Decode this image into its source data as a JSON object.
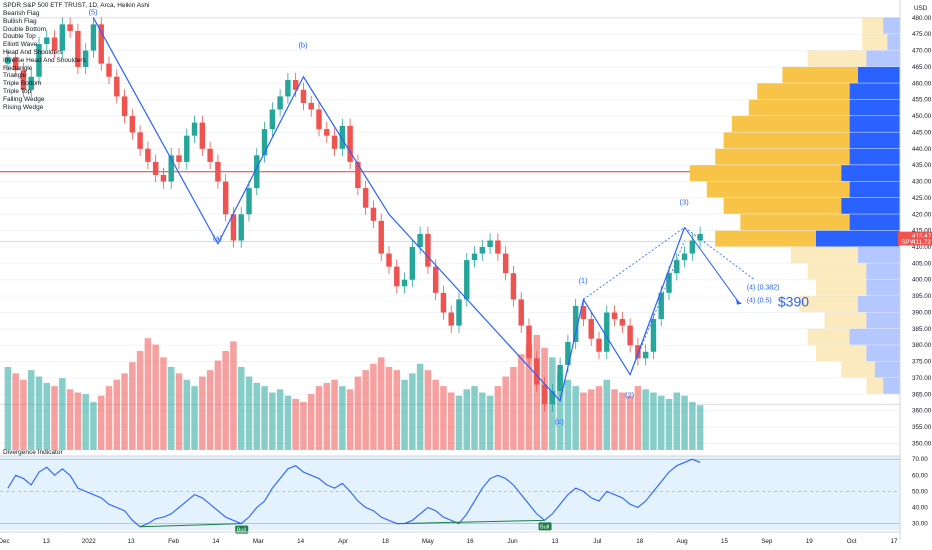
{
  "header": {
    "symbol_line": "SPDR S&P 500 ETF TRUST, 1D, Arca, Heikin Ashi"
  },
  "patterns": [
    "Bearish Flag",
    "Bullish Flag",
    "Double Bottom",
    "Double Top",
    "Elliott Wave",
    "Head And Shoulders",
    "Inverse Head And Shoulders",
    "Rectangle",
    "Triangle",
    "Triple Bottom",
    "Triple Top",
    "Falling Wedge",
    "Rising Wedge"
  ],
  "indicator": {
    "title": "Divergence Indicator"
  },
  "colors": {
    "up": "#26a69a",
    "down": "#ef5350",
    "wave": "#2962ff",
    "vp_up": "#2962ff",
    "vp_down": "#f7c448",
    "resistance": "#e53935",
    "osc_bg": "#e3f2fd",
    "bull_label": "#1b7d45"
  },
  "price_axis": {
    "unit": "USD",
    "ticks": [
      350,
      355,
      360,
      365,
      370,
      375,
      380,
      385,
      390,
      395,
      400,
      405,
      410,
      415,
      420,
      425,
      430,
      435,
      440,
      445,
      450,
      455,
      460,
      465,
      470,
      475,
      480
    ],
    "labels": [
      "350.00",
      "355.00",
      "360.00",
      "365.00",
      "370.00",
      "375.00",
      "380.00",
      "385.00",
      "390.00",
      "395.00",
      "400.00",
      "405.00",
      "410.00",
      "415.00",
      "420.00",
      "425.00",
      "430.00",
      "435.00",
      "440.00",
      "445.00",
      "450.00",
      "455.00",
      "460.00",
      "465.00",
      "470.00",
      "475.00",
      "480.00"
    ],
    "last_price": {
      "value": 413.47,
      "label": "413.47"
    },
    "symbol_tag": {
      "symbol": "SPY",
      "value": 411.72,
      "label": "411.72"
    }
  },
  "osc_axis": {
    "ticks": [
      30,
      40,
      50,
      60,
      70
    ],
    "labels": [
      "30.00",
      "40.00",
      "50.00",
      "60.00",
      "70.00"
    ]
  },
  "time_axis": {
    "labels": [
      "Dec",
      "13",
      "2022",
      "13",
      "Feb",
      "14",
      "Mar",
      "14",
      "Apr",
      "18",
      "May",
      "16",
      "Jun",
      "13",
      "Jul",
      "18",
      "Aug",
      "15",
      "Sep",
      "19",
      "Oct",
      "17"
    ]
  },
  "chart_data": {
    "type": "candlestick",
    "price_range": [
      348,
      483
    ],
    "osc_range": [
      26,
      72
    ],
    "resistance_level": 433,
    "series_close": [
      468,
      464,
      458,
      462,
      472,
      474,
      470,
      478,
      476,
      465,
      470,
      478,
      466,
      462,
      456,
      450,
      445,
      440,
      436,
      432,
      430,
      438,
      436,
      444,
      448,
      440,
      436,
      430,
      420,
      412,
      420,
      428,
      438,
      446,
      452,
      456,
      461,
      458,
      454,
      452,
      446,
      444,
      440,
      447,
      436,
      428,
      422,
      418,
      408,
      404,
      398,
      400,
      410,
      414,
      404,
      396,
      390,
      386,
      394,
      406,
      408,
      410,
      412,
      408,
      402,
      394,
      386,
      376,
      368,
      362,
      366,
      374,
      381,
      392,
      388,
      382,
      378,
      390,
      388,
      386,
      380,
      376,
      378,
      388,
      396,
      402,
      406,
      408,
      412,
      414
    ],
    "volume": [
      52,
      48,
      44,
      50,
      46,
      42,
      40,
      45,
      38,
      36,
      35,
      30,
      34,
      40,
      44,
      48,
      55,
      62,
      70,
      66,
      58,
      52,
      48,
      44,
      40,
      46,
      50,
      56,
      62,
      68,
      52,
      46,
      42,
      40,
      36,
      38,
      34,
      32,
      30,
      35,
      40,
      42,
      44,
      40,
      38,
      46,
      50,
      54,
      58,
      52,
      50,
      44,
      48,
      54,
      50,
      44,
      40,
      36,
      34,
      38,
      40,
      36,
      34,
      40,
      46,
      52,
      60,
      66,
      72,
      64,
      58,
      48,
      44,
      40,
      36,
      38,
      40,
      44,
      38,
      36,
      34,
      40,
      38,
      36,
      34,
      32,
      36,
      34,
      30,
      28
    ],
    "oscillator": [
      52,
      60,
      58,
      54,
      62,
      65,
      60,
      64,
      60,
      52,
      50,
      48,
      46,
      42,
      40,
      38,
      32,
      28,
      30,
      33,
      34,
      36,
      40,
      44,
      48,
      46,
      42,
      38,
      34,
      32,
      30,
      34,
      40,
      44,
      52,
      58,
      64,
      66,
      62,
      60,
      58,
      54,
      52,
      55,
      50,
      44,
      40,
      38,
      34,
      32,
      30,
      30,
      32,
      36,
      40,
      38,
      34,
      32,
      30,
      36,
      44,
      52,
      58,
      60,
      58,
      54,
      48,
      42,
      36,
      32,
      36,
      42,
      48,
      52,
      50,
      46,
      44,
      50,
      48,
      46,
      42,
      40,
      44,
      50,
      56,
      62,
      66,
      68,
      70,
      68
    ],
    "wave_labels": [
      {
        "text": "(5)",
        "x": 11,
        "y": 481
      },
      {
        "text": "(a)",
        "x": 27,
        "y": 412
      },
      {
        "text": "(b)",
        "x": 38,
        "y": 471
      },
      {
        "text": "(c)",
        "x": 71,
        "y": 356
      },
      {
        "text": "(1)",
        "x": 74,
        "y": 399
      },
      {
        "text": "(2)",
        "x": 80,
        "y": 364
      },
      {
        "text": "(3)",
        "x": 87,
        "y": 423
      }
    ],
    "wave_path": [
      [
        11,
        480
      ],
      [
        27,
        411
      ],
      [
        38,
        462
      ],
      [
        49,
        420
      ],
      [
        71,
        363
      ],
      [
        74,
        394
      ],
      [
        80,
        371
      ],
      [
        87,
        416
      ]
    ],
    "projection": [
      {
        "text": "(4) (0.382)",
        "x": 95,
        "y": 397
      },
      {
        "text": "(4) (0.5)",
        "x": 95,
        "y": 393
      },
      {
        "text": "$390",
        "x": 99,
        "y": 393
      }
    ],
    "volume_profile": [
      {
        "price": 477.5,
        "up": 5,
        "down": 4
      },
      {
        "price": 472.5,
        "up": 6,
        "down": 3
      },
      {
        "price": 467.5,
        "up": 14,
        "down": 8
      },
      {
        "price": 462.5,
        "up": 18,
        "down": 10
      },
      {
        "price": 457.5,
        "up": 22,
        "down": 12
      },
      {
        "price": 452.5,
        "up": 24,
        "down": 12
      },
      {
        "price": 447.5,
        "up": 28,
        "down": 12
      },
      {
        "price": 442.5,
        "up": 30,
        "down": 12
      },
      {
        "price": 437.5,
        "up": 32,
        "down": 12
      },
      {
        "price": 432.5,
        "up": 36,
        "down": 14
      },
      {
        "price": 427.5,
        "up": 34,
        "down": 12
      },
      {
        "price": 422.5,
        "up": 28,
        "down": 14
      },
      {
        "price": 417.5,
        "up": 26,
        "down": 12
      },
      {
        "price": 412.5,
        "up": 24,
        "down": 20
      },
      {
        "price": 407.5,
        "up": 16,
        "down": 10
      },
      {
        "price": 402.5,
        "up": 14,
        "down": 8
      },
      {
        "price": 397.5,
        "up": 12,
        "down": 8
      },
      {
        "price": 392.5,
        "up": 14,
        "down": 10
      },
      {
        "price": 387.5,
        "up": 10,
        "down": 8
      },
      {
        "price": 382.5,
        "up": 10,
        "down": 12
      },
      {
        "price": 377.5,
        "up": 12,
        "down": 8
      },
      {
        "price": 372.5,
        "up": 8,
        "down": 6
      },
      {
        "price": 367.5,
        "up": 4,
        "down": 4
      }
    ],
    "divergences": [
      {
        "from": 17,
        "to": 30,
        "label": "Bull"
      },
      {
        "from": 50,
        "to": 69,
        "label": "Bull"
      }
    ]
  }
}
